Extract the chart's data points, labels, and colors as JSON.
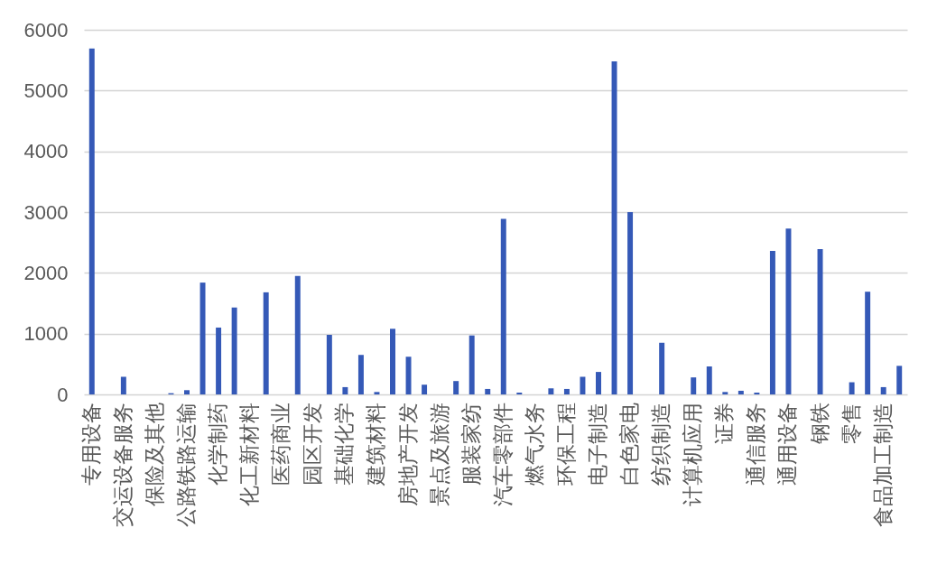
{
  "chart_data": {
    "type": "bar",
    "categories": [
      "专用设备",
      null,
      "交运设备服务",
      null,
      "保险及其他",
      null,
      "公路铁路运输",
      null,
      "化学制药",
      null,
      "化工新材料",
      null,
      "医药商业",
      null,
      "园区开发",
      null,
      "基础化学",
      null,
      "建筑材料",
      null,
      "房地产开发",
      null,
      "景点及旅游",
      null,
      "服装家纺",
      null,
      "汽车零部件",
      null,
      "燃气水务",
      null,
      "环保工程",
      null,
      "电子制造",
      null,
      "白色家电",
      null,
      "纺织制造",
      null,
      "计算机应用",
      null,
      "证券",
      null,
      "通信服务",
      null,
      "通用设备",
      null,
      "钢铁",
      null,
      "零售",
      null,
      "食品加工制造",
      null
    ],
    "values": [
      5690,
      null,
      290,
      null,
      null,
      20,
      70,
      1840,
      1100,
      1430,
      null,
      1680,
      null,
      1950,
      null,
      980,
      120,
      650,
      40,
      1080,
      620,
      160,
      null,
      220,
      970,
      90,
      2890,
      30,
      null,
      100,
      90,
      290,
      370,
      5480,
      3000,
      null,
      850,
      null,
      280,
      460,
      40,
      60,
      30,
      2360,
      2730,
      null,
      2390,
      null,
      200,
      1690,
      120,
      470
    ],
    "color": "#3559b7",
    "ylim": [
      0,
      6000
    ],
    "yticks": [
      0,
      1000,
      2000,
      3000,
      4000,
      5000,
      6000
    ],
    "grid": "y"
  }
}
